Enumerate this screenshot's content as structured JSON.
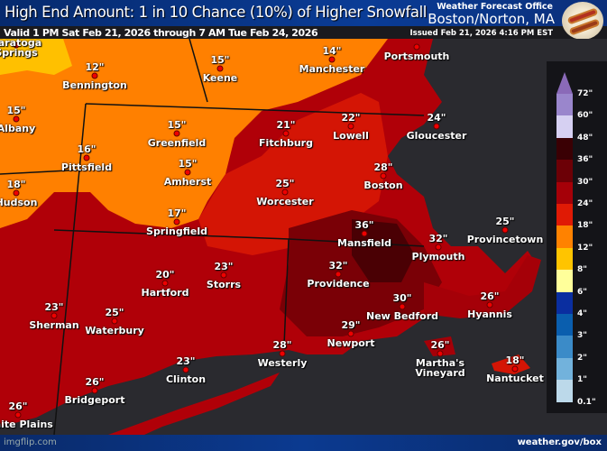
{
  "header": {
    "title": "High End Amount: 1 in 10 Chance (10%) of Higher Snowfall",
    "valid": "Valid 1 PM Sat Feb 21, 2026 through 7 AM Tue Feb 24, 2026",
    "office_label": "Weather Forecast Office",
    "office": "Boston/Norton, MA",
    "issued": "Issued Feb 21, 2026 4:16 PM EST",
    "logo_icon": "hot-dogs-plate-icon"
  },
  "cities": [
    {
      "name": "Saratoga Springs",
      "value": ""
    },
    {
      "name": "Bennington",
      "value": "12\""
    },
    {
      "name": "Keene",
      "value": "15\""
    },
    {
      "name": "Manchester",
      "value": "14\""
    },
    {
      "name": "Portsmouth",
      "value": ""
    },
    {
      "name": "Albany",
      "value": "15\""
    },
    {
      "name": "Pittsfield",
      "value": "16\""
    },
    {
      "name": "Greenfield",
      "value": "15\""
    },
    {
      "name": "Fitchburg",
      "value": "21\""
    },
    {
      "name": "Lowell",
      "value": "22\""
    },
    {
      "name": "Gloucester",
      "value": "24\""
    },
    {
      "name": "Amherst",
      "value": "15\""
    },
    {
      "name": "Hudson",
      "value": "18\""
    },
    {
      "name": "Boston",
      "value": "28\""
    },
    {
      "name": "Worcester",
      "value": "25\""
    },
    {
      "name": "Springfield",
      "value": "17\""
    },
    {
      "name": "Mansfield",
      "value": "36\""
    },
    {
      "name": "Plymouth",
      "value": "32\""
    },
    {
      "name": "Provincetown",
      "value": "25\""
    },
    {
      "name": "Hartford",
      "value": "20\""
    },
    {
      "name": "Storrs",
      "value": "23\""
    },
    {
      "name": "Providence",
      "value": "32\""
    },
    {
      "name": "Sherman",
      "value": "23\""
    },
    {
      "name": "Waterbury",
      "value": "25\""
    },
    {
      "name": "New Bedford",
      "value": "30\""
    },
    {
      "name": "Hyannis",
      "value": "26\""
    },
    {
      "name": "Newport",
      "value": "29\""
    },
    {
      "name": "Westerly",
      "value": "28\""
    },
    {
      "name": "Martha's Vineyard",
      "value": "26\""
    },
    {
      "name": "Nantucket",
      "value": "18\""
    },
    {
      "name": "Clinton",
      "value": "23\""
    },
    {
      "name": "Bridgeport",
      "value": "26\""
    },
    {
      "name": "White Plains",
      "value": "26\""
    }
  ],
  "legend": {
    "labels": [
      "72\"",
      "60\"",
      "48\"",
      "36\"",
      "30\"",
      "24\"",
      "18\"",
      "12\"",
      "8\"",
      "6\"",
      "4\"",
      "3\"",
      "2\"",
      "1\"",
      "0.1\""
    ],
    "colors": [
      "#9a86cc",
      "#d6d0f2",
      "#3a0004",
      "#6c0006",
      "#a50008",
      "#e01a05",
      "#ff8200",
      "#ffc400",
      "#ffff9a",
      "#0a2ea0",
      "#0a5eae",
      "#3b8bc8",
      "#72b2dc",
      "#bcd9ea"
    ]
  },
  "footer": {
    "watermark": "imgflip.com",
    "site": "weather.gov/box"
  }
}
